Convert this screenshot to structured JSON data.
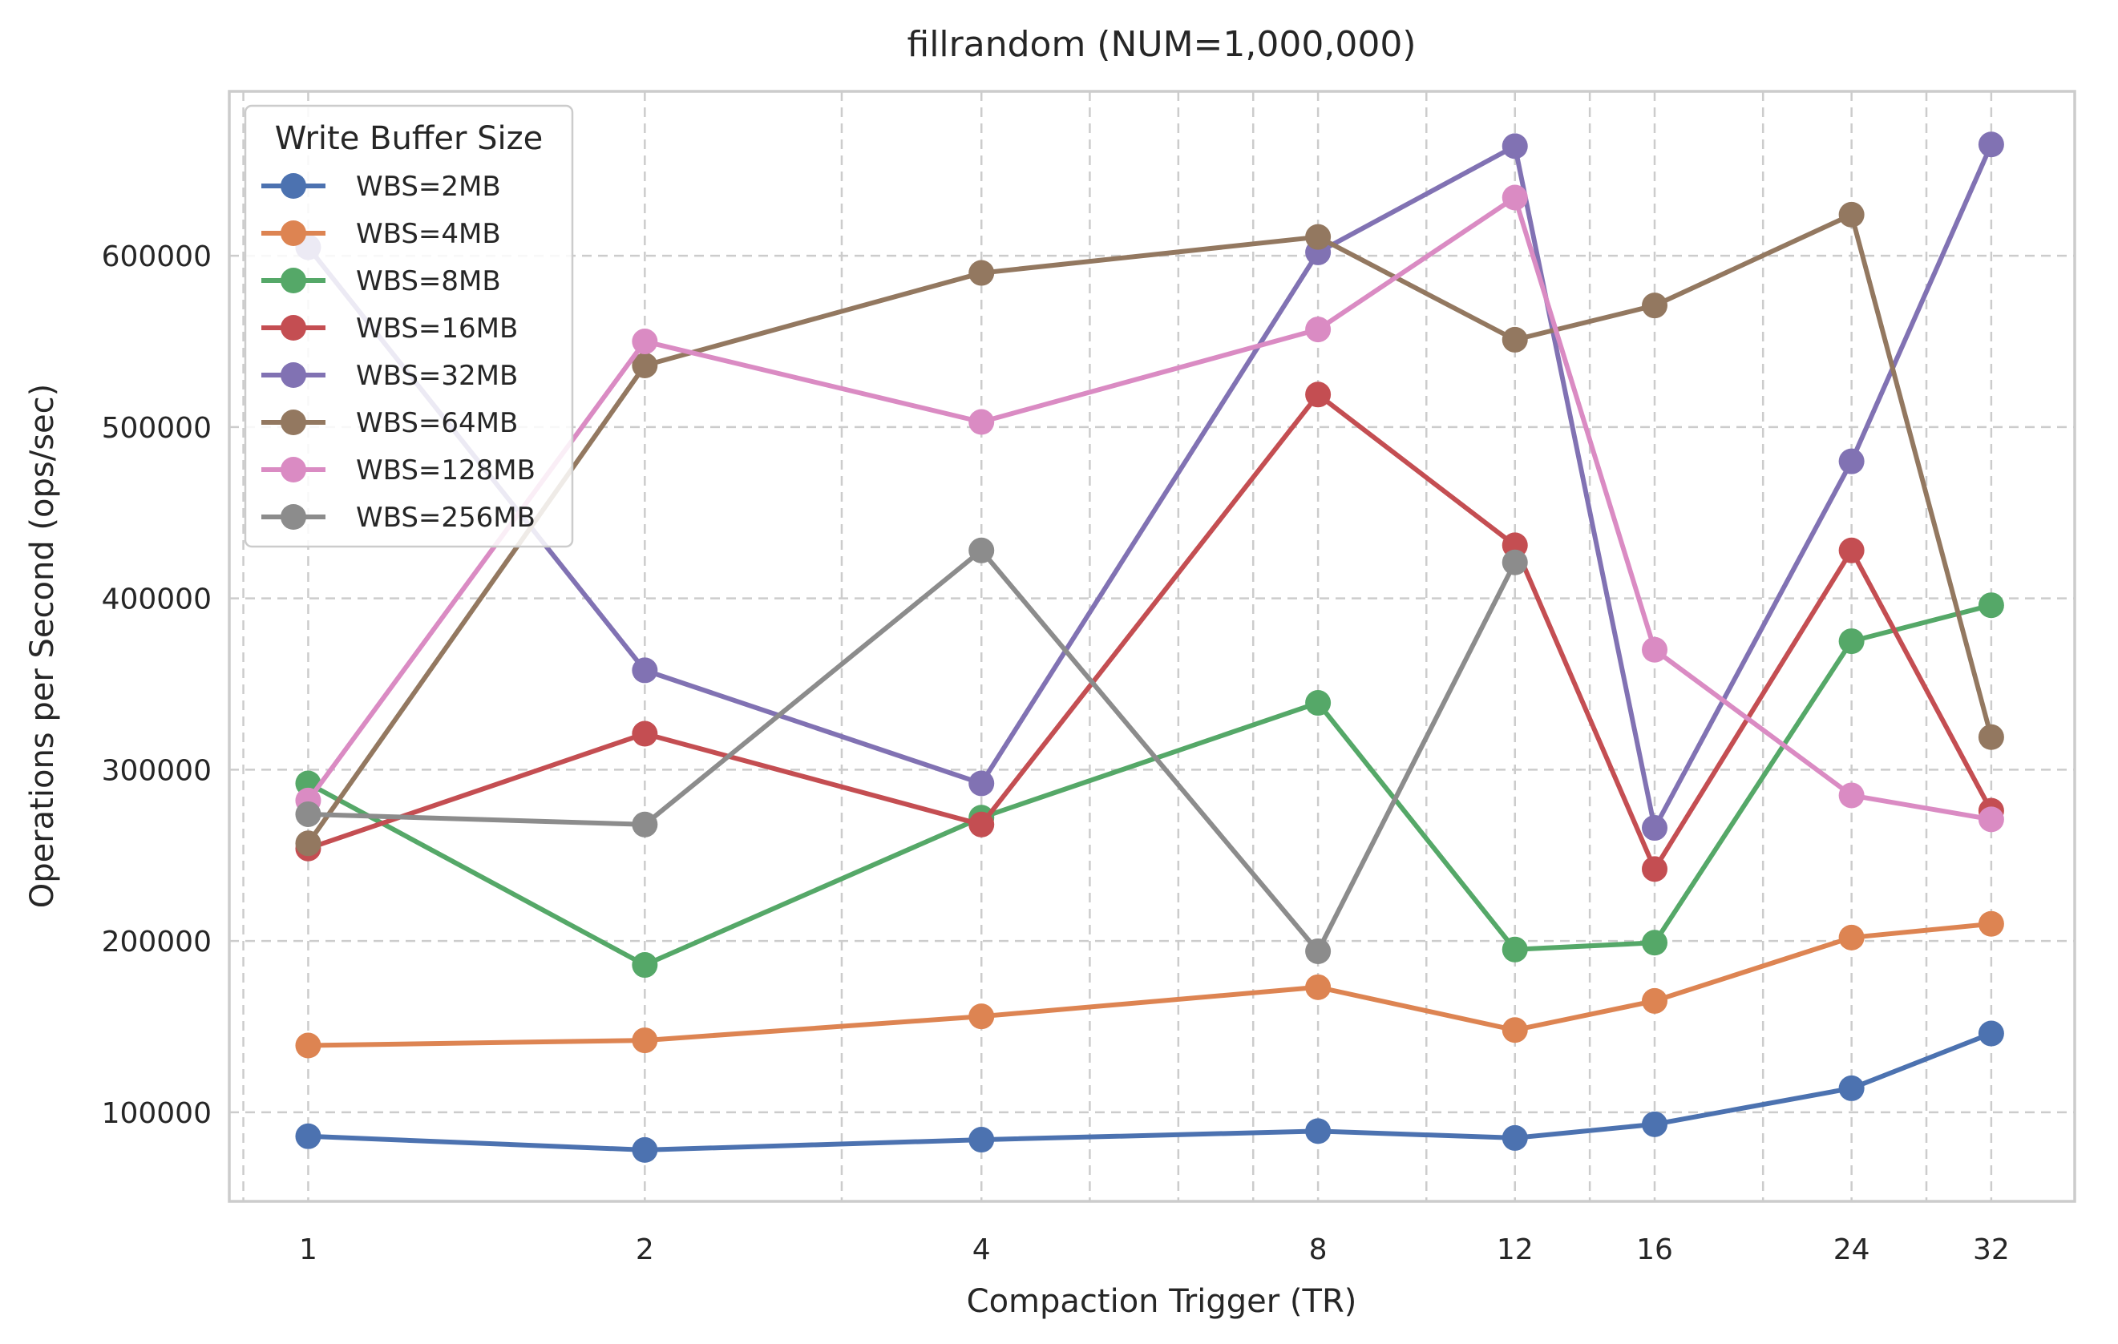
{
  "chart_data": {
    "type": "line",
    "title": "fillrandom (NUM=1,000,000)",
    "xlabel": "Compaction Trigger (TR)",
    "ylabel": "Operations per Second (ops/sec)",
    "x_scale": "log2",
    "x": [
      1,
      2,
      4,
      8,
      12,
      16,
      24,
      32
    ],
    "x_tick_labels": [
      "1",
      "2",
      "4",
      "8",
      "12",
      "16",
      "24",
      "32"
    ],
    "xlim": [
      0.85,
      38
    ],
    "ylim": [
      48000,
      696000
    ],
    "y_ticks": [
      100000,
      200000,
      300000,
      400000,
      500000,
      600000
    ],
    "y_tick_labels": [
      "100000",
      "200000",
      "300000",
      "400000",
      "500000",
      "600000"
    ],
    "grid": true,
    "legend": {
      "title": "Write Buffer Size",
      "position": "top-left"
    },
    "series": [
      {
        "name": "WBS=2MB",
        "color": "#4c72b0",
        "values": [
          86000,
          78000,
          84000,
          89000,
          85000,
          93000,
          114000,
          146000
        ]
      },
      {
        "name": "WBS=4MB",
        "color": "#dd8452",
        "values": [
          139000,
          142000,
          156000,
          173000,
          148000,
          165000,
          202000,
          210000
        ]
      },
      {
        "name": "WBS=8MB",
        "color": "#55a868",
        "values": [
          292000,
          186000,
          272000,
          339000,
          195000,
          199000,
          375000,
          396000
        ]
      },
      {
        "name": "WBS=16MB",
        "color": "#c44e52",
        "values": [
          254000,
          321000,
          268000,
          519000,
          431000,
          242000,
          428000,
          276000
        ]
      },
      {
        "name": "WBS=32MB",
        "color": "#8172b3",
        "values": [
          605000,
          358000,
          292000,
          602000,
          664000,
          266000,
          480000,
          665000
        ]
      },
      {
        "name": "WBS=64MB",
        "color": "#937860",
        "values": [
          257000,
          536000,
          590000,
          611000,
          551000,
          571000,
          624000,
          319000
        ]
      },
      {
        "name": "WBS=128MB",
        "color": "#da8bc3",
        "values": [
          282000,
          550000,
          503000,
          557000,
          634000,
          370000,
          285000,
          271000
        ]
      },
      {
        "name": "WBS=256MB",
        "color": "#8c8c8c",
        "values": [
          274000,
          268000,
          428000,
          194000,
          421000,
          null,
          null,
          null
        ]
      }
    ]
  }
}
